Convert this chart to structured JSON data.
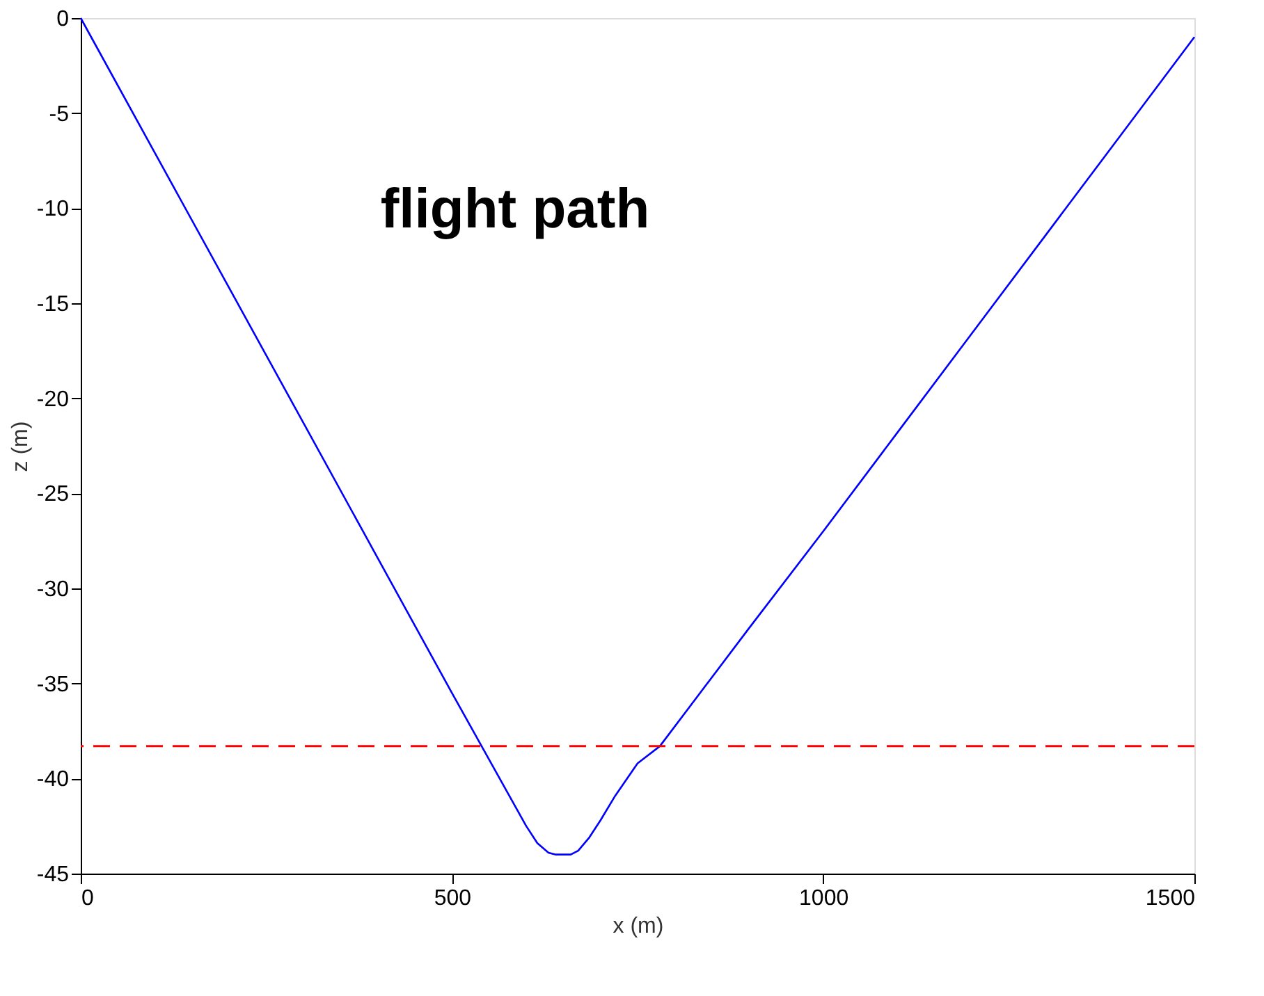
{
  "chart_data": {
    "type": "line",
    "xlabel": "x (m)",
    "ylabel": "z (m)",
    "annotations": [
      "flight path"
    ],
    "x": [
      0,
      100,
      200,
      300,
      400,
      500,
      540,
      580,
      600,
      615,
      630,
      640,
      660,
      670,
      685,
      700,
      720,
      750,
      780,
      900,
      1000,
      1100,
      1200,
      1300,
      1400,
      1500
    ],
    "series": [
      {
        "color": "#0000ff",
        "values": [
          0,
          -7.1,
          -14.2,
          -21.3,
          -28.4,
          -35.5,
          -38.3,
          -41.1,
          -42.5,
          -43.4,
          -43.9,
          -44,
          -44,
          -43.8,
          -43.1,
          -42.2,
          -40.9,
          -39.2,
          -38.3,
          -32.1,
          -27,
          -21.8,
          -16.6,
          -11.4,
          -6.2,
          -1
        ]
      }
    ],
    "ref_lines": [
      {
        "axis": "y",
        "value": -38.3,
        "color": "#ff0000",
        "line_style": "dashed"
      }
    ],
    "xlim": [
      0,
      1500
    ],
    "xticks": [
      0,
      500,
      1000,
      1500
    ],
    "ylim": [
      -45,
      0
    ],
    "yticks": [
      -45,
      -40,
      -35,
      -30,
      -25,
      -20,
      -15,
      -10,
      -5,
      0
    ],
    "grid": false,
    "line_style": "solid",
    "marker": "none"
  }
}
